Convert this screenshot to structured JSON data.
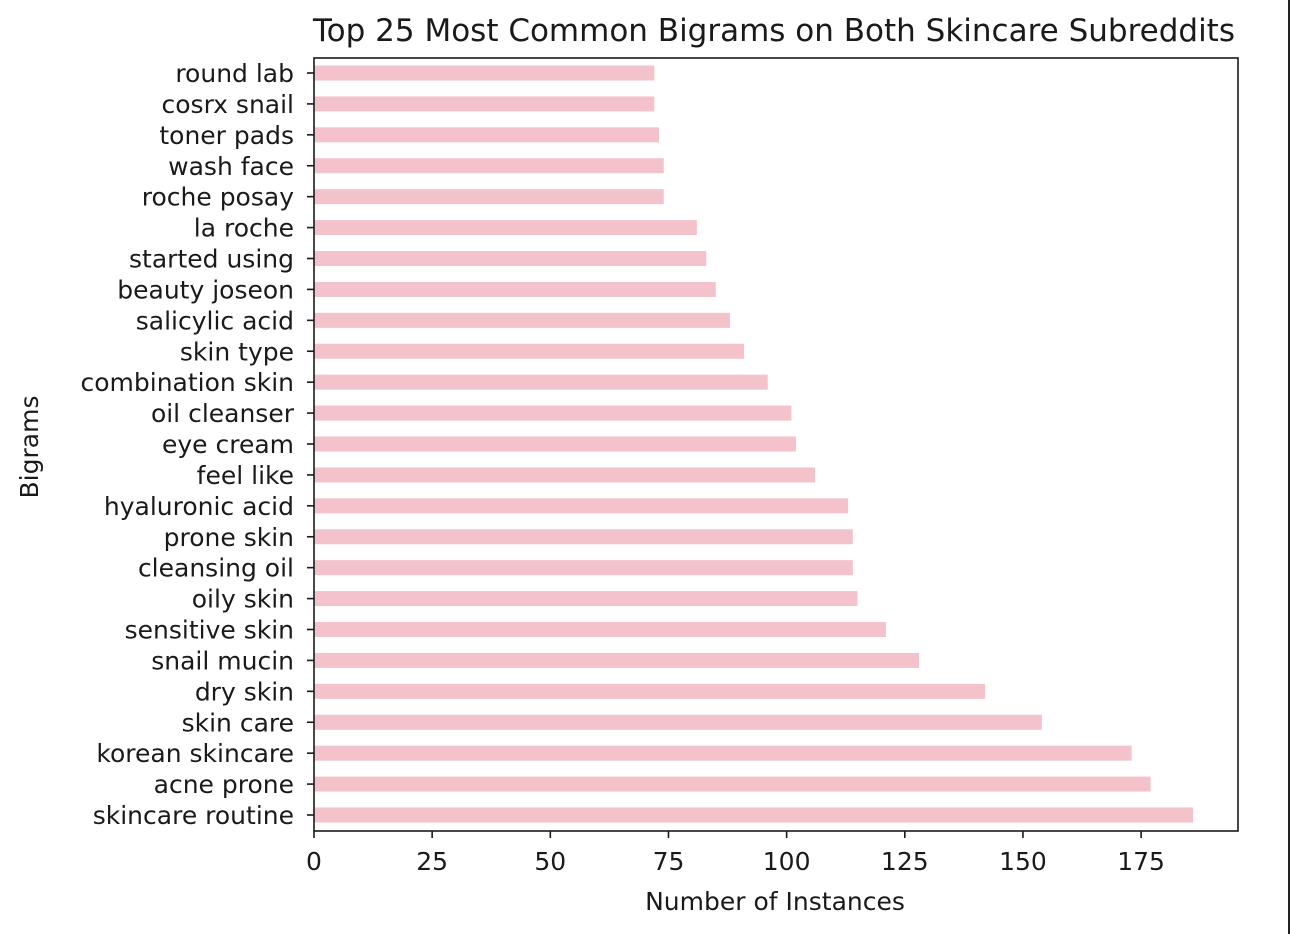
{
  "chart_data": {
    "type": "bar",
    "orientation": "horizontal",
    "title": "Top 25 Most Common Bigrams on Both Skincare Subreddits",
    "xlabel": "Number of Instances",
    "ylabel": "Bigrams",
    "xlim": [
      0,
      195.5
    ],
    "xticks": [
      0,
      25,
      50,
      75,
      100,
      125,
      150,
      175
    ],
    "grid": false,
    "legend": "none",
    "bar_color": "#f4c2cb",
    "categories": [
      "skincare routine",
      "acne prone",
      "korean skincare",
      "skin care",
      "dry skin",
      "snail mucin",
      "sensitive skin",
      "oily skin",
      "cleansing oil",
      "prone skin",
      "hyaluronic acid",
      "feel like",
      "eye cream",
      "oil cleanser",
      "combination skin",
      "skin type",
      "salicylic acid",
      "beauty joseon",
      "started using",
      "la roche",
      "roche posay",
      "wash face",
      "toner pads",
      "cosrx snail",
      "round lab"
    ],
    "values": [
      186,
      177,
      173,
      154,
      142,
      128,
      121,
      115,
      114,
      114,
      113,
      106,
      102,
      101,
      96,
      91,
      88,
      85,
      83,
      81,
      74,
      74,
      73,
      72,
      72
    ]
  }
}
